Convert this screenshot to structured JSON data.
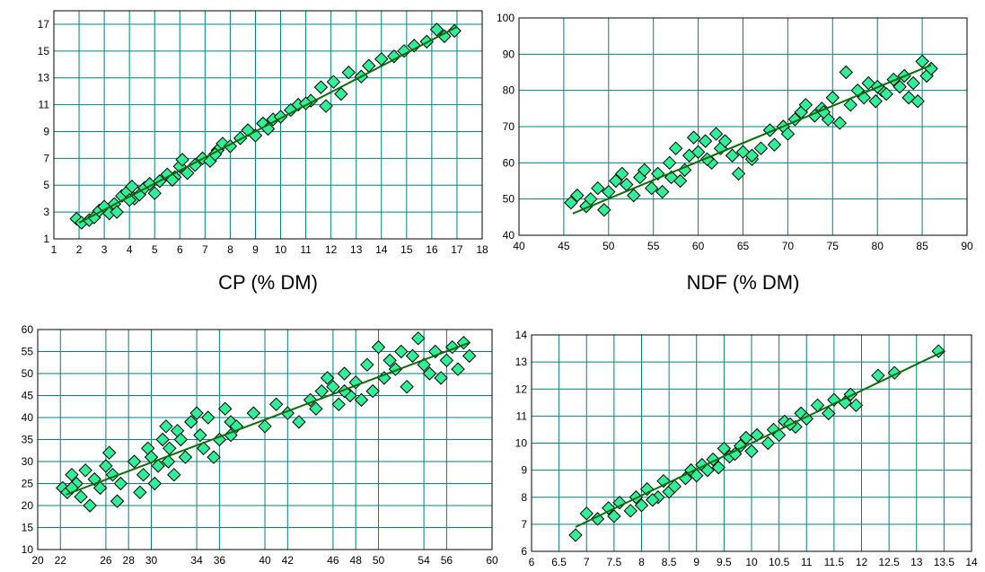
{
  "chart_data": [
    {
      "type": "scatter",
      "xlabel": "CP (% DM)",
      "ylabel": "",
      "xlim": [
        1,
        18
      ],
      "ylim": [
        1,
        18
      ],
      "xticks": [
        "1",
        "2",
        "3",
        "4",
        "5",
        "6",
        "7",
        "8",
        "9",
        "10",
        "11",
        "12",
        "13",
        "14",
        "15",
        "16",
        "17",
        "18"
      ],
      "yticks": [
        "1",
        "3",
        "5",
        "7",
        "9",
        "11",
        "13",
        "15",
        "17"
      ],
      "trend": [
        [
          2.0,
          2.2
        ],
        [
          17.0,
          16.8
        ]
      ],
      "points": [
        [
          1.9,
          2.5
        ],
        [
          2.1,
          2.2
        ],
        [
          2.4,
          2.4
        ],
        [
          2.6,
          2.6
        ],
        [
          2.8,
          3.1
        ],
        [
          3.0,
          3.4
        ],
        [
          3.2,
          2.9
        ],
        [
          3.4,
          3.6
        ],
        [
          3.5,
          3.0
        ],
        [
          3.7,
          4.2
        ],
        [
          3.9,
          4.5
        ],
        [
          4.1,
          4.9
        ],
        [
          4.2,
          4.0
        ],
        [
          4.4,
          4.3
        ],
        [
          4.6,
          4.8
        ],
        [
          4.8,
          5.1
        ],
        [
          5.0,
          4.4
        ],
        [
          5.2,
          5.3
        ],
        [
          5.5,
          5.8
        ],
        [
          5.8,
          5.6
        ],
        [
          6.0,
          6.4
        ],
        [
          6.1,
          6.9
        ],
        [
          6.3,
          5.9
        ],
        [
          6.6,
          6.5
        ],
        [
          6.9,
          7.0
        ],
        [
          7.2,
          6.8
        ],
        [
          7.5,
          7.6
        ],
        [
          7.7,
          8.1
        ],
        [
          8.0,
          7.9
        ],
        [
          8.4,
          8.5
        ],
        [
          8.7,
          9.1
        ],
        [
          9.0,
          8.7
        ],
        [
          9.3,
          9.6
        ],
        [
          9.7,
          9.9
        ],
        [
          10.0,
          10.1
        ],
        [
          10.4,
          10.6
        ],
        [
          10.7,
          11.0
        ],
        [
          11.2,
          11.3
        ],
        [
          11.6,
          12.3
        ],
        [
          11.8,
          10.9
        ],
        [
          12.1,
          12.7
        ],
        [
          12.4,
          11.8
        ],
        [
          12.7,
          13.4
        ],
        [
          13.2,
          13.1
        ],
        [
          13.5,
          13.9
        ],
        [
          14.0,
          14.4
        ],
        [
          14.5,
          14.6
        ],
        [
          14.9,
          15.0
        ],
        [
          15.3,
          15.4
        ],
        [
          15.8,
          15.7
        ],
        [
          16.2,
          16.6
        ],
        [
          16.5,
          16.1
        ],
        [
          16.9,
          16.5
        ],
        [
          4.0,
          3.9
        ],
        [
          5.7,
          5.4
        ],
        [
          7.4,
          7.3
        ],
        [
          9.5,
          9.2
        ],
        [
          11.0,
          11.1
        ]
      ]
    },
    {
      "type": "scatter",
      "xlabel": "NDF (% DM)",
      "ylabel": "",
      "xlim": [
        40,
        90
      ],
      "ylim": [
        40,
        100
      ],
      "xticks": [
        "40",
        "45",
        "50",
        "55",
        "60",
        "65",
        "70",
        "75",
        "80",
        "85",
        "90"
      ],
      "yticks": [
        "40",
        "50",
        "60",
        "70",
        "80",
        "90",
        "100"
      ],
      "trend": [
        [
          46.0,
          46.0
        ],
        [
          86.0,
          87.0
        ]
      ],
      "points": [
        [
          45.8,
          49
        ],
        [
          46.5,
          51
        ],
        [
          47.5,
          48
        ],
        [
          48.0,
          50
        ],
        [
          48.8,
          53
        ],
        [
          49.5,
          47
        ],
        [
          50.0,
          52
        ],
        [
          50.8,
          55
        ],
        [
          51.5,
          57
        ],
        [
          52.0,
          54
        ],
        [
          52.8,
          51
        ],
        [
          53.5,
          56
        ],
        [
          54.0,
          58
        ],
        [
          54.8,
          53
        ],
        [
          55.5,
          57
        ],
        [
          56.0,
          52
        ],
        [
          56.8,
          60
        ],
        [
          57.5,
          64
        ],
        [
          58.0,
          55
        ],
        [
          58.5,
          58
        ],
        [
          59.0,
          62
        ],
        [
          59.5,
          67
        ],
        [
          60.0,
          63
        ],
        [
          60.8,
          66
        ],
        [
          61.5,
          60
        ],
        [
          62.0,
          68
        ],
        [
          62.5,
          64
        ],
        [
          63.0,
          66
        ],
        [
          63.8,
          62
        ],
        [
          64.5,
          57
        ],
        [
          65.0,
          63
        ],
        [
          66.0,
          61
        ],
        [
          67.0,
          64
        ],
        [
          68.0,
          69
        ],
        [
          68.5,
          65
        ],
        [
          69.5,
          70
        ],
        [
          70.0,
          68
        ],
        [
          70.8,
          72
        ],
        [
          71.5,
          74
        ],
        [
          72.0,
          76
        ],
        [
          73.0,
          73
        ],
        [
          73.8,
          75
        ],
        [
          74.5,
          72
        ],
        [
          75.0,
          78
        ],
        [
          75.8,
          71
        ],
        [
          76.5,
          85
        ],
        [
          77.0,
          76
        ],
        [
          77.8,
          80
        ],
        [
          78.5,
          78
        ],
        [
          79.0,
          82
        ],
        [
          79.8,
          77
        ],
        [
          80.5,
          80
        ],
        [
          81.0,
          79
        ],
        [
          81.8,
          83
        ],
        [
          82.5,
          81
        ],
        [
          83.0,
          84
        ],
        [
          83.5,
          78
        ],
        [
          84.0,
          82
        ],
        [
          84.5,
          77
        ],
        [
          85.0,
          88
        ],
        [
          85.5,
          84
        ],
        [
          86.0,
          86
        ],
        [
          57.0,
          56
        ],
        [
          61.0,
          61
        ],
        [
          66.0,
          62
        ],
        [
          74.0,
          74
        ],
        [
          80.0,
          81
        ]
      ]
    },
    {
      "type": "scatter",
      "xlabel": "",
      "ylabel": "",
      "xlim": [
        20,
        60
      ],
      "ylim": [
        10,
        60
      ],
      "xticks": [
        "20",
        "22",
        "26",
        "28",
        "30",
        "34",
        "36",
        "40",
        "42",
        "46",
        "48",
        "50",
        "54",
        "56",
        "60"
      ],
      "xtickvals": [
        20,
        22,
        26,
        28,
        30,
        34,
        36,
        40,
        42,
        46,
        48,
        50,
        54,
        56,
        60
      ],
      "yticks": [
        "10",
        "15",
        "20",
        "25",
        "30",
        "35",
        "40",
        "45",
        "50",
        "55",
        "60"
      ],
      "trend": [
        [
          22.5,
          22.5
        ],
        [
          58.0,
          57.0
        ]
      ],
      "points": [
        [
          22.2,
          24
        ],
        [
          22.6,
          23
        ],
        [
          23.0,
          27
        ],
        [
          23.4,
          25
        ],
        [
          23.8,
          22
        ],
        [
          24.2,
          28
        ],
        [
          24.6,
          20
        ],
        [
          25.0,
          26
        ],
        [
          25.5,
          24
        ],
        [
          26.0,
          29
        ],
        [
          26.3,
          32
        ],
        [
          26.6,
          27
        ],
        [
          27.0,
          21
        ],
        [
          27.3,
          25
        ],
        [
          28.5,
          30
        ],
        [
          29.0,
          23
        ],
        [
          29.3,
          27
        ],
        [
          29.7,
          33
        ],
        [
          30.0,
          31
        ],
        [
          30.3,
          25
        ],
        [
          30.6,
          29
        ],
        [
          31.0,
          35
        ],
        [
          31.3,
          38
        ],
        [
          31.6,
          33
        ],
        [
          32.0,
          27
        ],
        [
          32.3,
          37
        ],
        [
          32.6,
          35
        ],
        [
          33.0,
          31
        ],
        [
          33.5,
          39
        ],
        [
          34.0,
          41
        ],
        [
          34.3,
          36
        ],
        [
          34.6,
          33
        ],
        [
          35.0,
          40
        ],
        [
          35.5,
          31
        ],
        [
          36.0,
          35
        ],
        [
          36.5,
          42
        ],
        [
          37.0,
          39
        ],
        [
          37.5,
          38
        ],
        [
          39.0,
          41
        ],
        [
          40.0,
          38
        ],
        [
          41.0,
          43
        ],
        [
          42.0,
          41
        ],
        [
          43.0,
          39
        ],
        [
          44.0,
          44
        ],
        [
          44.5,
          42
        ],
        [
          45.0,
          46
        ],
        [
          45.5,
          49
        ],
        [
          46.0,
          47
        ],
        [
          46.5,
          43
        ],
        [
          47.0,
          50
        ],
        [
          47.5,
          45
        ],
        [
          48.0,
          48
        ],
        [
          48.5,
          44
        ],
        [
          49.0,
          52
        ],
        [
          49.5,
          46
        ],
        [
          50.0,
          56
        ],
        [
          50.5,
          49
        ],
        [
          51.0,
          53
        ],
        [
          51.5,
          51
        ],
        [
          52.0,
          55
        ],
        [
          52.5,
          47
        ],
        [
          53.0,
          54
        ],
        [
          53.5,
          58
        ],
        [
          54.0,
          52
        ],
        [
          54.5,
          50
        ],
        [
          55.0,
          55
        ],
        [
          55.5,
          49
        ],
        [
          56.0,
          53
        ],
        [
          56.5,
          56
        ],
        [
          57.0,
          51
        ],
        [
          57.5,
          57
        ],
        [
          58.0,
          54
        ],
        [
          23.0,
          24
        ],
        [
          31.5,
          30
        ],
        [
          37.0,
          36
        ],
        [
          47.0,
          46
        ]
      ]
    },
    {
      "type": "scatter",
      "xlabel": "",
      "ylabel": "",
      "xlim": [
        6,
        14
      ],
      "ylim": [
        6,
        14
      ],
      "xticks": [
        "6",
        "6.5",
        "7",
        "7.5",
        "8",
        "8.5",
        "9",
        "9.5",
        "10",
        "10.5",
        "11",
        "11.5",
        "12",
        "12.5",
        "13",
        "13.5",
        "14"
      ],
      "yticks": [
        "6",
        "7",
        "8",
        "9",
        "10",
        "11",
        "12",
        "13",
        "14"
      ],
      "trend": [
        [
          6.8,
          6.9
        ],
        [
          13.5,
          13.4
        ]
      ],
      "points": [
        [
          6.8,
          6.6
        ],
        [
          7.0,
          7.4
        ],
        [
          7.2,
          7.2
        ],
        [
          7.4,
          7.6
        ],
        [
          7.5,
          7.3
        ],
        [
          7.6,
          7.8
        ],
        [
          7.8,
          7.5
        ],
        [
          7.9,
          8.0
        ],
        [
          8.0,
          7.7
        ],
        [
          8.1,
          8.3
        ],
        [
          8.3,
          8.0
        ],
        [
          8.4,
          8.6
        ],
        [
          8.5,
          8.2
        ],
        [
          8.6,
          8.4
        ],
        [
          8.8,
          8.7
        ],
        [
          8.9,
          9.0
        ],
        [
          9.0,
          8.8
        ],
        [
          9.1,
          9.2
        ],
        [
          9.2,
          9.0
        ],
        [
          9.3,
          9.4
        ],
        [
          9.4,
          9.1
        ],
        [
          9.5,
          9.8
        ],
        [
          9.6,
          9.5
        ],
        [
          9.8,
          9.9
        ],
        [
          9.9,
          10.2
        ],
        [
          10.0,
          9.7
        ],
        [
          10.1,
          10.3
        ],
        [
          10.3,
          10.0
        ],
        [
          10.4,
          10.5
        ],
        [
          10.5,
          10.3
        ],
        [
          10.6,
          10.8
        ],
        [
          10.8,
          10.6
        ],
        [
          10.9,
          11.1
        ],
        [
          11.0,
          10.9
        ],
        [
          11.2,
          11.4
        ],
        [
          11.4,
          11.1
        ],
        [
          11.5,
          11.6
        ],
        [
          11.7,
          11.5
        ],
        [
          11.8,
          11.8
        ],
        [
          11.9,
          11.4
        ],
        [
          12.3,
          12.5
        ],
        [
          12.6,
          12.6
        ],
        [
          13.4,
          13.4
        ],
        [
          8.2,
          7.9
        ],
        [
          9.7,
          9.6
        ],
        [
          10.7,
          10.7
        ]
      ]
    }
  ]
}
